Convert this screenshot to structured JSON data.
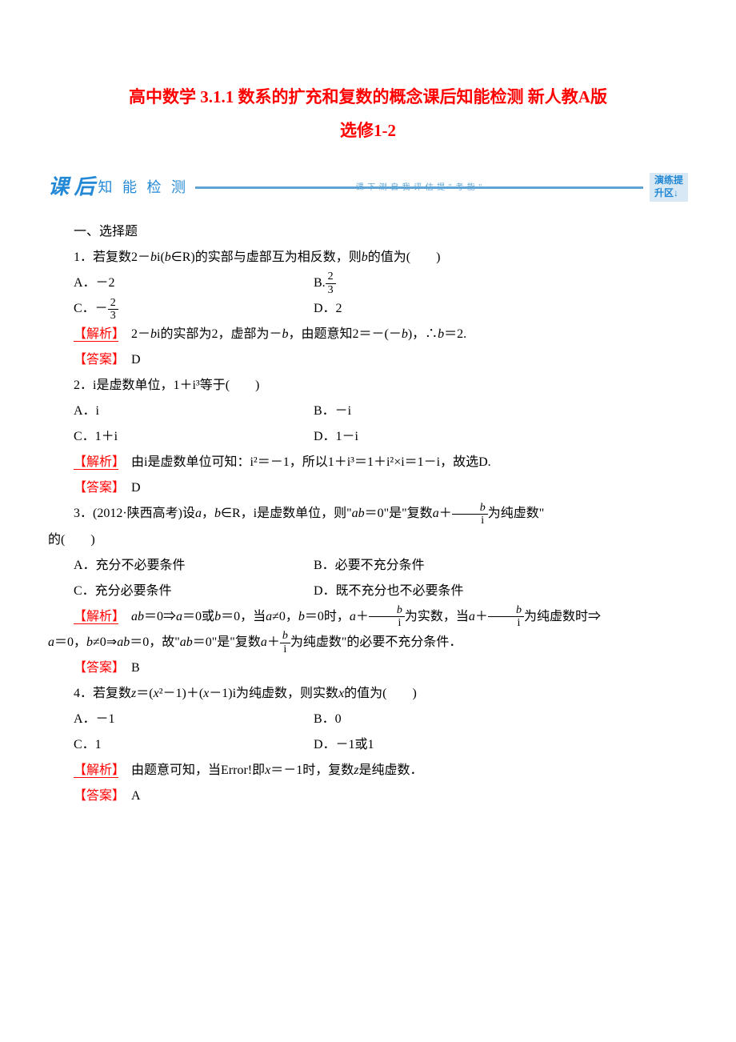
{
  "title_line1": "高中数学 3.1.1 数系的扩充和复数的概念课后知能检测 新人教A版",
  "title_line2": "选修1-2",
  "banner": {
    "left_big": "课 后",
    "left_text": "知 能 检 测",
    "sub_text": "课 下 测  自 我 评 估  提 \" 考 能 \"",
    "right_line1": "演练提",
    "right_line2": "升区↓"
  },
  "section": "一、选择题",
  "q1": {
    "text_prefix": "1．若复数2－",
    "text_mid": "i(",
    "text_mid2": "∈R)的实部与虚部互为相反数，则",
    "text_suffix": "的值为(　　)",
    "optA": "A．－2",
    "optB_prefix": "B.",
    "optB_num": "2",
    "optB_den": "3",
    "optC_prefix": "C．－",
    "optC_num": "2",
    "optC_den": "3",
    "optD": "D．2",
    "analysis_prefix": "　2－",
    "analysis_mid1": "i的实部为2，虚部为－",
    "analysis_mid2": "，由题意知2＝－(－",
    "analysis_mid3": ")，∴",
    "analysis_suffix": "＝2.",
    "answer": "　D"
  },
  "q2": {
    "text": "2．i是虚数单位，1＋i³等于(　　)",
    "optA": "A．i",
    "optB": "B．－i",
    "optC": "C．1＋i",
    "optD": "D．1－i",
    "analysis": "　由i是虚数单位可知：i²＝－1，所以1＋i³＝1＋i²×i＝1－i，故选D.",
    "answer": "　D"
  },
  "q3": {
    "text_prefix": "3．(2012·陕西高考)设",
    "text_mid1": "，",
    "text_mid2": "∈R，i是虚数单位，则\"",
    "text_mid3": "＝0\"是\"复数",
    "text_mid4": "＋",
    "text_suffix": "为纯虚数\"",
    "text_line2": "的(　　)",
    "frac_num": "b",
    "frac_den": "i",
    "optA": "A．充分不必要条件",
    "optB": "B．必要不充分条件",
    "optC": "C．充分必要条件",
    "optD": "D．既不充分也不必要条件",
    "analysis_p1_prefix": "　",
    "analysis_p1_1": "＝0⇒",
    "analysis_p1_2": "＝0或",
    "analysis_p1_3": "＝0，当",
    "analysis_p1_4": "≠0，",
    "analysis_p1_5": "＝0时，",
    "analysis_p1_6": "＋",
    "analysis_p1_7": "为实数，当",
    "analysis_p1_8": "＋",
    "analysis_p1_9": "为纯虚数时⇒",
    "analysis_p2_1": "＝0，",
    "analysis_p2_2": "≠0⇒",
    "analysis_p2_3": "＝0，故\"",
    "analysis_p2_4": "＝0\"是\"复数",
    "analysis_p2_5": "＋",
    "analysis_p2_6": "为纯虚数\"的必要不充分条件．",
    "answer": "　B"
  },
  "q4": {
    "text_prefix": "4．若复数",
    "text_mid1": "＝(",
    "text_mid2": "²－1)＋(",
    "text_mid3": "－1)i为纯虚数，则实数",
    "text_suffix": "的值为(　　)",
    "optA": "A．－1",
    "optB": "B．0",
    "optC": "C．1",
    "optD": "D．－1或1",
    "analysis_prefix": "　由题意可知，当Error!即",
    "analysis_mid": "＝－1时，复数",
    "analysis_suffix": "是纯虚数．",
    "answer": "　A"
  },
  "labels": {
    "analysis": "【解析】",
    "answer": "【答案】"
  }
}
